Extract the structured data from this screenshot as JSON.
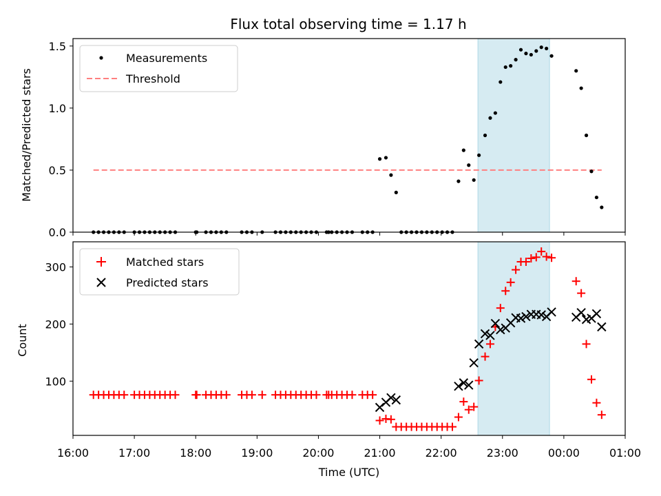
{
  "chart_data": [
    {
      "type": "scatter",
      "title": "Flux total observing time = 1.17 h",
      "ylabel": "Matched/Predicted stars",
      "xlim": [
        "16:00",
        "01:00"
      ],
      "ylim": [
        0,
        1.56
      ],
      "yticks": [
        "0.0",
        "0.5",
        "1.0",
        "1.5"
      ],
      "highlight_span": [
        "22:36",
        "23:46"
      ],
      "threshold": {
        "name": "Threshold",
        "value": 0.5,
        "x_range": [
          "16:20",
          "00:37"
        ],
        "color": "#ff7f7f"
      },
      "series": [
        {
          "name": "Measurements",
          "color": "#000000",
          "points": [
            [
              "16:20",
              0
            ],
            [
              "16:25",
              0
            ],
            [
              "16:30",
              0
            ],
            [
              "16:35",
              0
            ],
            [
              "16:40",
              0
            ],
            [
              "16:45",
              0
            ],
            [
              "16:50",
              0
            ],
            [
              "17:00",
              0
            ],
            [
              "17:05",
              0
            ],
            [
              "17:10",
              0
            ],
            [
              "17:15",
              0
            ],
            [
              "17:20",
              0
            ],
            [
              "17:25",
              0
            ],
            [
              "17:30",
              0
            ],
            [
              "17:35",
              0
            ],
            [
              "17:40",
              0
            ],
            [
              "18:00",
              0
            ],
            [
              "18:01",
              0
            ],
            [
              "18:10",
              0
            ],
            [
              "18:15",
              0
            ],
            [
              "18:20",
              0
            ],
            [
              "18:25",
              0
            ],
            [
              "18:30",
              0
            ],
            [
              "18:45",
              0
            ],
            [
              "18:50",
              0
            ],
            [
              "18:55",
              0
            ],
            [
              "19:05",
              0
            ],
            [
              "19:18",
              0
            ],
            [
              "19:23",
              0
            ],
            [
              "19:28",
              0
            ],
            [
              "19:33",
              0
            ],
            [
              "19:38",
              0
            ],
            [
              "19:43",
              0
            ],
            [
              "19:48",
              0
            ],
            [
              "19:53",
              0
            ],
            [
              "19:58",
              0
            ],
            [
              "20:08",
              0
            ],
            [
              "20:10",
              0
            ],
            [
              "20:13",
              0
            ],
            [
              "20:18",
              0
            ],
            [
              "20:23",
              0
            ],
            [
              "20:28",
              0
            ],
            [
              "20:33",
              0
            ],
            [
              "20:43",
              0
            ],
            [
              "20:48",
              0
            ],
            [
              "20:53",
              0
            ],
            [
              "21:00",
              0.59
            ],
            [
              "21:06",
              0.6
            ],
            [
              "21:11",
              0.46
            ],
            [
              "21:16",
              0.32
            ],
            [
              "21:21",
              0
            ],
            [
              "21:26",
              0
            ],
            [
              "21:31",
              0
            ],
            [
              "21:36",
              0
            ],
            [
              "21:41",
              0
            ],
            [
              "21:46",
              0
            ],
            [
              "21:51",
              0
            ],
            [
              "21:56",
              0
            ],
            [
              "22:01",
              0
            ],
            [
              "22:06",
              0
            ],
            [
              "22:11",
              0
            ],
            [
              "22:17",
              0.41
            ],
            [
              "22:22",
              0.66
            ],
            [
              "22:27",
              0.54
            ],
            [
              "22:32",
              0.42
            ],
            [
              "22:37",
              0.62
            ],
            [
              "22:43",
              0.78
            ],
            [
              "22:48",
              0.92
            ],
            [
              "22:53",
              0.96
            ],
            [
              "22:58",
              1.21
            ],
            [
              "23:03",
              1.33
            ],
            [
              "23:08",
              1.34
            ],
            [
              "23:13",
              1.39
            ],
            [
              "23:18",
              1.47
            ],
            [
              "23:23",
              1.44
            ],
            [
              "23:28",
              1.43
            ],
            [
              "23:33",
              1.46
            ],
            [
              "23:38",
              1.49
            ],
            [
              "23:43",
              1.48
            ],
            [
              "23:48",
              1.42
            ],
            [
              "00:12",
              1.3
            ],
            [
              "00:17",
              1.16
            ],
            [
              "00:22",
              0.78
            ],
            [
              "00:27",
              0.49
            ],
            [
              "00:32",
              0.28
            ],
            [
              "00:37",
              0.2
            ]
          ]
        }
      ]
    },
    {
      "type": "scatter",
      "xlabel": "Time (UTC)",
      "ylabel": "Count",
      "xticks": [
        "16:00",
        "17:00",
        "18:00",
        "19:00",
        "20:00",
        "21:00",
        "22:00",
        "23:00",
        "00:00",
        "01:00"
      ],
      "ylim": [
        5,
        344
      ],
      "yticks": [
        "100",
        "200",
        "300"
      ],
      "highlight_span": [
        "22:36",
        "23:46"
      ],
      "series": [
        {
          "name": "Matched stars",
          "color": "#ff0000",
          "marker": "+",
          "points": [
            [
              "16:20",
              76
            ],
            [
              "16:25",
              76
            ],
            [
              "16:30",
              76
            ],
            [
              "16:35",
              76
            ],
            [
              "16:40",
              76
            ],
            [
              "16:45",
              76
            ],
            [
              "16:50",
              76
            ],
            [
              "17:00",
              76
            ],
            [
              "17:05",
              76
            ],
            [
              "17:10",
              76
            ],
            [
              "17:15",
              76
            ],
            [
              "17:20",
              76
            ],
            [
              "17:25",
              76
            ],
            [
              "17:30",
              76
            ],
            [
              "17:35",
              76
            ],
            [
              "17:40",
              76
            ],
            [
              "18:00",
              76
            ],
            [
              "18:01",
              76
            ],
            [
              "18:10",
              76
            ],
            [
              "18:15",
              76
            ],
            [
              "18:20",
              76
            ],
            [
              "18:25",
              76
            ],
            [
              "18:30",
              76
            ],
            [
              "18:45",
              76
            ],
            [
              "18:50",
              76
            ],
            [
              "18:55",
              76
            ],
            [
              "19:05",
              76
            ],
            [
              "19:18",
              76
            ],
            [
              "19:23",
              76
            ],
            [
              "19:28",
              76
            ],
            [
              "19:33",
              76
            ],
            [
              "19:38",
              76
            ],
            [
              "19:43",
              76
            ],
            [
              "19:48",
              76
            ],
            [
              "19:53",
              76
            ],
            [
              "19:58",
              76
            ],
            [
              "20:08",
              76
            ],
            [
              "20:10",
              76
            ],
            [
              "20:13",
              76
            ],
            [
              "20:18",
              76
            ],
            [
              "20:23",
              76
            ],
            [
              "20:28",
              76
            ],
            [
              "20:33",
              76
            ],
            [
              "20:43",
              76
            ],
            [
              "20:48",
              76
            ],
            [
              "20:53",
              76
            ],
            [
              "21:00",
              31
            ],
            [
              "21:06",
              34
            ],
            [
              "21:11",
              33
            ],
            [
              "21:16",
              20
            ],
            [
              "21:21",
              20
            ],
            [
              "21:26",
              20
            ],
            [
              "21:31",
              20
            ],
            [
              "21:36",
              20
            ],
            [
              "21:41",
              20
            ],
            [
              "21:46",
              20
            ],
            [
              "21:51",
              20
            ],
            [
              "21:56",
              20
            ],
            [
              "22:01",
              20
            ],
            [
              "22:06",
              20
            ],
            [
              "22:11",
              20
            ],
            [
              "22:17",
              37
            ],
            [
              "22:22",
              64
            ],
            [
              "22:27",
              50
            ],
            [
              "22:32",
              55
            ],
            [
              "22:37",
              101
            ],
            [
              "22:43",
              143
            ],
            [
              "22:48",
              165
            ],
            [
              "22:53",
              195
            ],
            [
              "22:58",
              228
            ],
            [
              "23:03",
              258
            ],
            [
              "23:08",
              273
            ],
            [
              "23:13",
              295
            ],
            [
              "23:18",
              309
            ],
            [
              "23:23",
              309
            ],
            [
              "23:28",
              315
            ],
            [
              "23:33",
              317
            ],
            [
              "23:38",
              327
            ],
            [
              "23:43",
              318
            ],
            [
              "23:48",
              316
            ],
            [
              "00:12",
              275
            ],
            [
              "00:17",
              254
            ],
            [
              "00:22",
              165
            ],
            [
              "00:27",
              103
            ],
            [
              "00:32",
              62
            ],
            [
              "00:37",
              41
            ]
          ]
        },
        {
          "name": "Predicted stars",
          "color": "#000000",
          "marker": "x",
          "points": [
            [
              "21:00",
              54
            ],
            [
              "21:06",
              63
            ],
            [
              "21:11",
              71
            ],
            [
              "21:16",
              67
            ],
            [
              "22:17",
              91
            ],
            [
              "22:22",
              97
            ],
            [
              "22:27",
              93
            ],
            [
              "22:32",
              132
            ],
            [
              "22:37",
              165
            ],
            [
              "22:43",
              183
            ],
            [
              "22:48",
              180
            ],
            [
              "22:53",
              201
            ],
            [
              "22:58",
              190
            ],
            [
              "23:03",
              193
            ],
            [
              "23:08",
              202
            ],
            [
              "23:13",
              211
            ],
            [
              "23:18",
              210
            ],
            [
              "23:23",
              213
            ],
            [
              "23:28",
              217
            ],
            [
              "23:33",
              217
            ],
            [
              "23:38",
              216
            ],
            [
              "23:43",
              213
            ],
            [
              "23:48",
              221
            ],
            [
              "00:12",
              212
            ],
            [
              "00:17",
              220
            ],
            [
              "00:22",
              208
            ],
            [
              "00:27",
              210
            ],
            [
              "00:32",
              218
            ],
            [
              "00:37",
              195
            ]
          ]
        }
      ]
    }
  ]
}
